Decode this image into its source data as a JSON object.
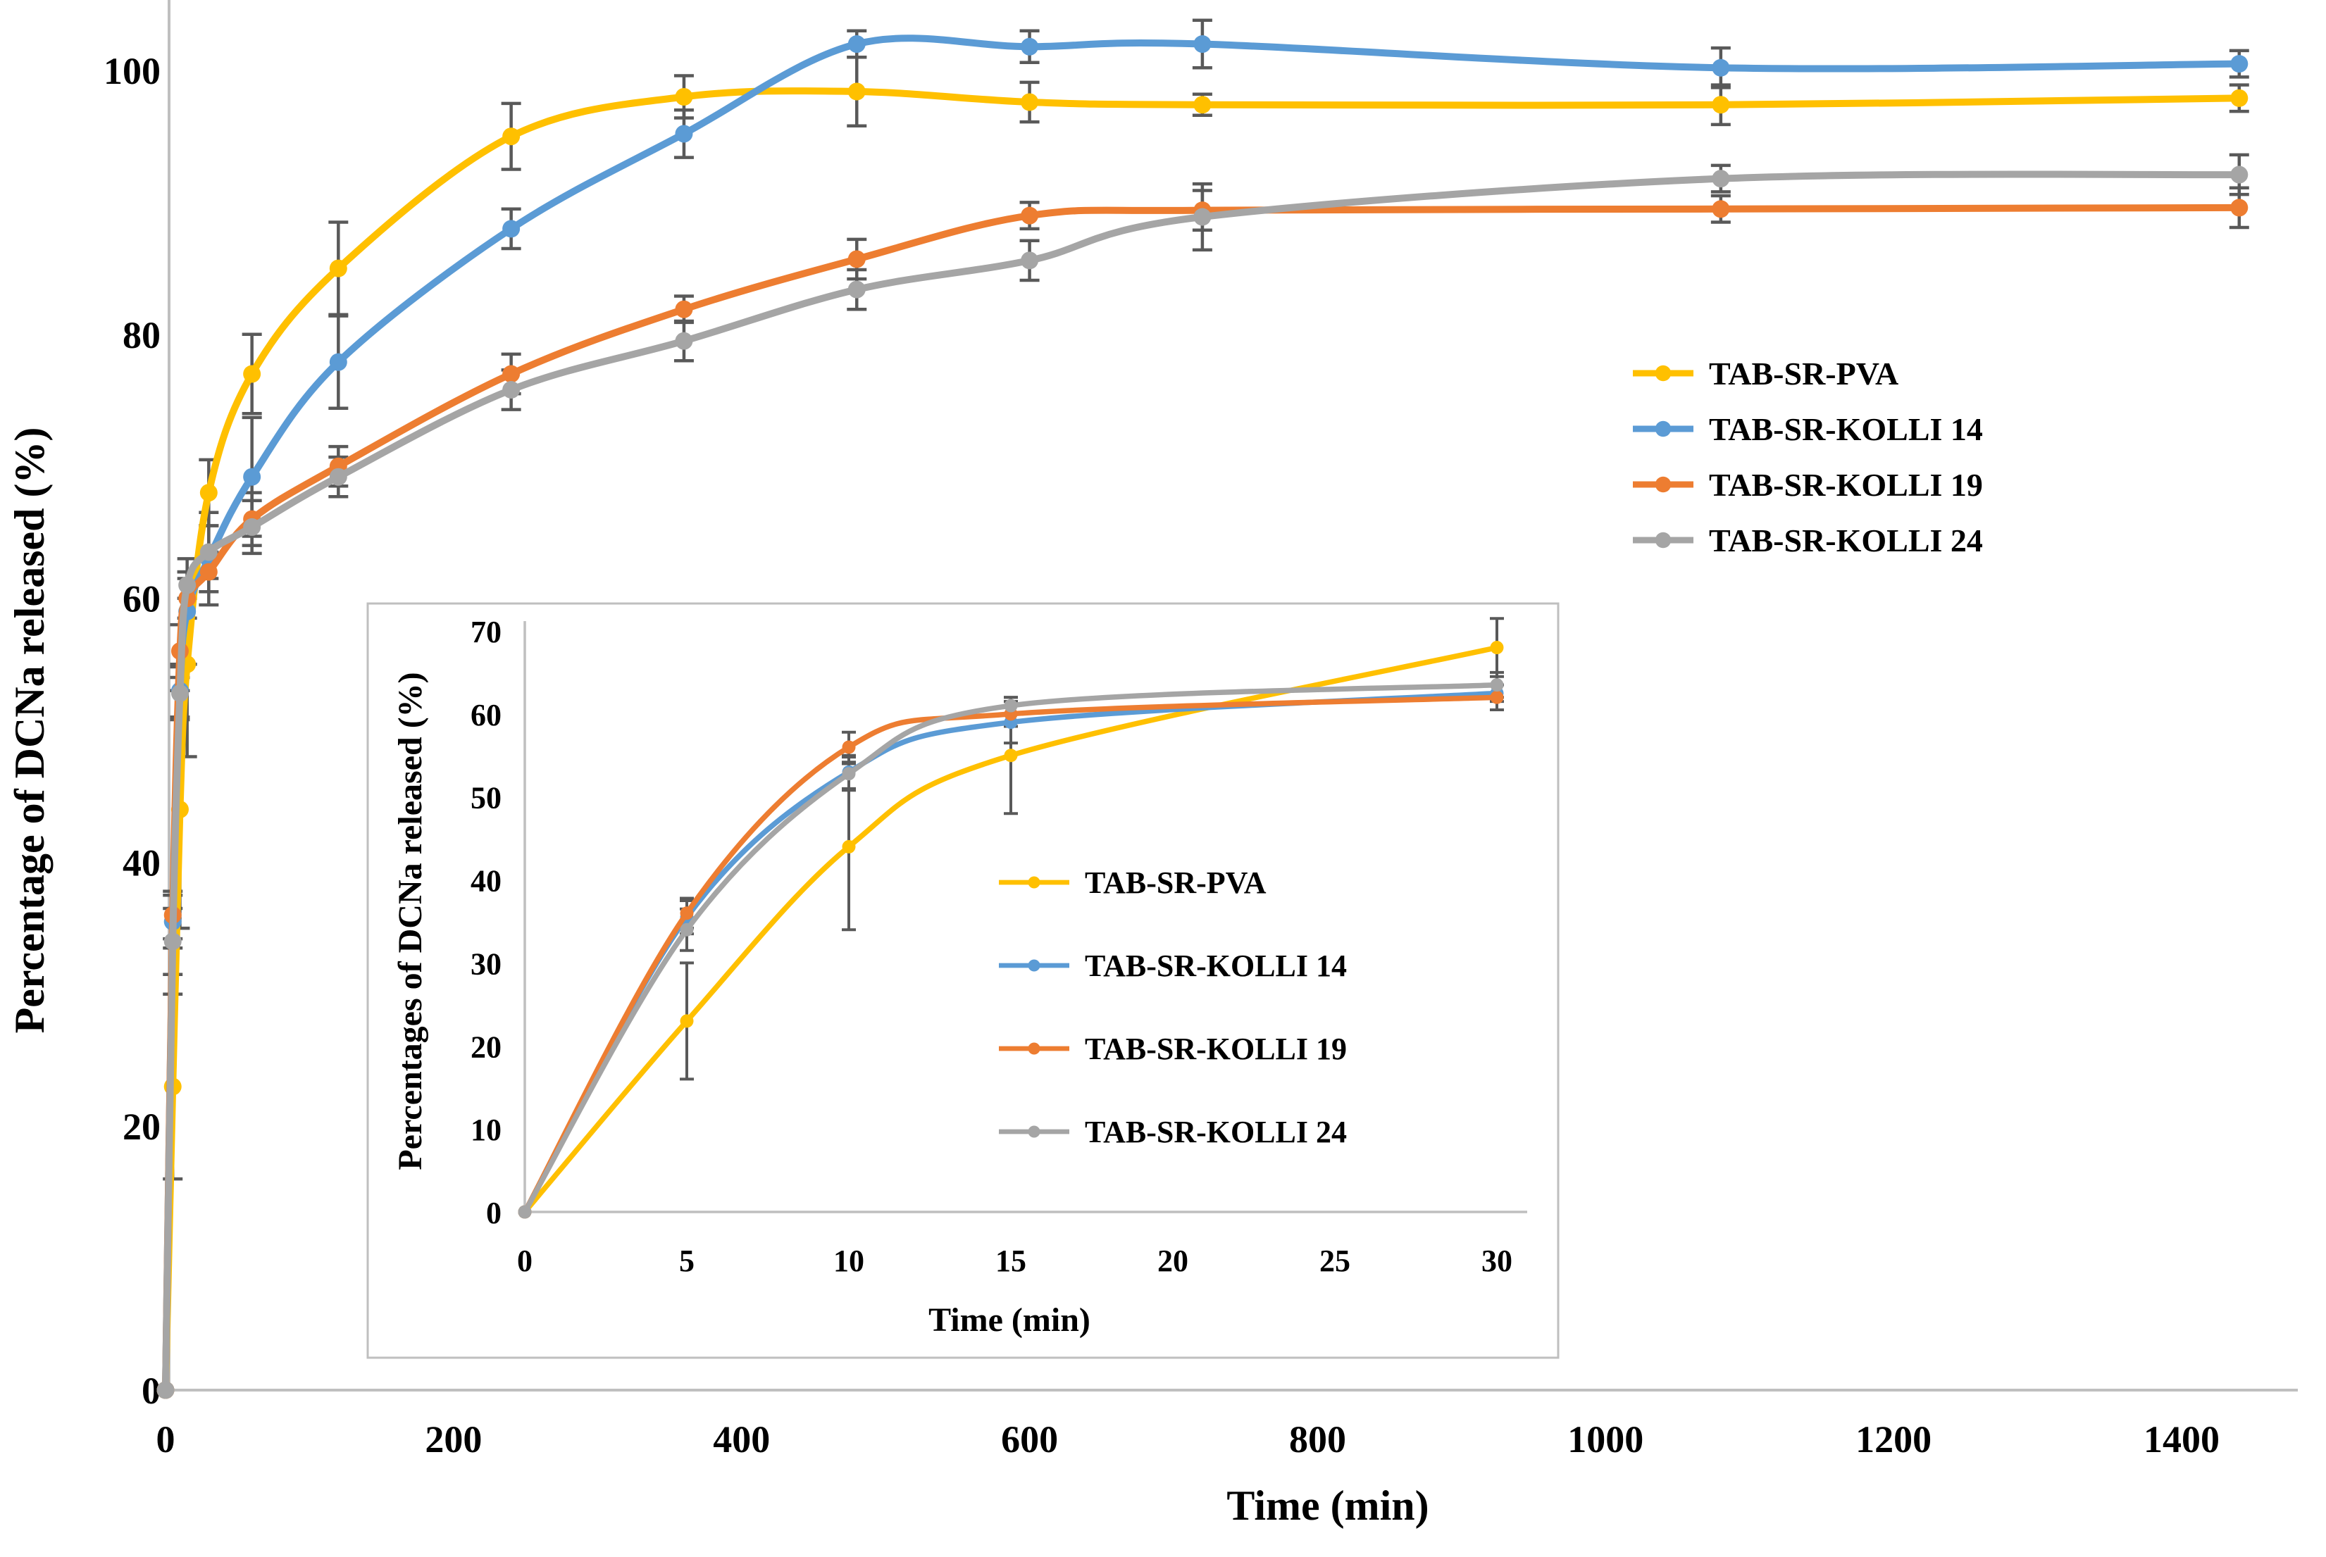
{
  "figure": {
    "background": "#FFFFFF",
    "axis_line_color": "#BFBFBF",
    "error_bar_color": "#595959"
  },
  "chart_data": [
    {
      "id": "main",
      "type": "line",
      "title": "",
      "xlabel": "Time (min)",
      "ylabel": "Percentage of DCNa released (%)",
      "x_ticks": [
        0,
        200,
        400,
        600,
        800,
        1000,
        1200,
        1400
      ],
      "y_ticks": [
        0,
        20,
        40,
        60,
        80,
        100
      ],
      "xlim": [
        0,
        1450
      ],
      "ylim": [
        0,
        105
      ],
      "grid": false,
      "legend_position": "right-inside",
      "x": [
        0,
        5,
        10,
        15,
        30,
        60,
        120,
        240,
        360,
        480,
        600,
        720,
        1080,
        1440
      ],
      "series": [
        {
          "name": "TAB-SR-PVA",
          "color": "#FFC000",
          "values": [
            0,
            23,
            44,
            55,
            68,
            77,
            85,
            95,
            98,
            98.4,
            97.6,
            97.4,
            97.4,
            97.9
          ],
          "errors": [
            0,
            7,
            9,
            7,
            2.5,
            3,
            3.5,
            2.5,
            1.6,
            2.6,
            1.5,
            0.8,
            1.5,
            1
          ]
        },
        {
          "name": "TAB-SR-KOLLI 14",
          "color": "#5B9BD5",
          "values": [
            0,
            35.5,
            53,
            59,
            63,
            69.2,
            77.9,
            88,
            95.2,
            102,
            101.8,
            102,
            100.2,
            100.5
          ],
          "errors": [
            0,
            2,
            2,
            4,
            3.5,
            4.5,
            3.5,
            1.5,
            1.8,
            1,
            1.2,
            1.8,
            1.5,
            1
          ]
        },
        {
          "name": "TAB-SR-KOLLI 19",
          "color": "#ED7D31",
          "values": [
            0,
            36,
            56,
            60,
            62,
            66,
            70,
            77,
            81.9,
            85.7,
            89,
            89.4,
            89.5,
            89.6
          ],
          "errors": [
            0,
            1.8,
            2,
            1.5,
            1.5,
            2,
            1.5,
            1.5,
            1,
            1.5,
            1,
            1.5,
            1,
            1.5
          ]
        },
        {
          "name": "TAB-SR-KOLLI 24",
          "color": "#A5A5A5",
          "values": [
            0,
            34,
            52.8,
            61,
            63.5,
            65.4,
            69.2,
            75.8,
            79.5,
            83.4,
            85.6,
            88.9,
            91.8,
            92.1
          ],
          "errors": [
            0,
            2.5,
            2,
            1,
            2,
            2,
            1.5,
            1.5,
            1.5,
            1.5,
            1.5,
            2.5,
            1,
            1.5
          ]
        }
      ]
    },
    {
      "id": "inset",
      "type": "line",
      "title": "",
      "xlabel": "Time (min)",
      "ylabel": "Percentages of DCNa released (%)",
      "x_ticks": [
        0,
        5,
        10,
        15,
        20,
        25,
        30
      ],
      "y_ticks": [
        0,
        10,
        20,
        30,
        40,
        50,
        60,
        70
      ],
      "xlim": [
        0,
        30
      ],
      "ylim": [
        0,
        70
      ],
      "grid": false,
      "legend_position": "right-inside",
      "x": [
        0,
        5,
        10,
        15,
        30
      ],
      "series": [
        {
          "name": "TAB-SR-PVA",
          "color": "#FFC000",
          "values": [
            0,
            23,
            44,
            55,
            68
          ],
          "errors": [
            0,
            7,
            10,
            7,
            3.5
          ]
        },
        {
          "name": "TAB-SR-KOLLI 14",
          "color": "#5B9BD5",
          "values": [
            0,
            35.5,
            53,
            59,
            62.5
          ],
          "errors": [
            0,
            2,
            2,
            2.5,
            1
          ]
        },
        {
          "name": "TAB-SR-KOLLI 19",
          "color": "#ED7D31",
          "values": [
            0,
            36,
            56,
            60,
            62
          ],
          "errors": [
            0,
            1.8,
            1.8,
            1.5,
            1.5
          ]
        },
        {
          "name": "TAB-SR-KOLLI 24",
          "color": "#A5A5A5",
          "values": [
            0,
            34,
            52.8,
            61,
            63.5
          ],
          "errors": [
            0,
            2.5,
            2,
            1,
            1.5
          ]
        }
      ]
    }
  ]
}
